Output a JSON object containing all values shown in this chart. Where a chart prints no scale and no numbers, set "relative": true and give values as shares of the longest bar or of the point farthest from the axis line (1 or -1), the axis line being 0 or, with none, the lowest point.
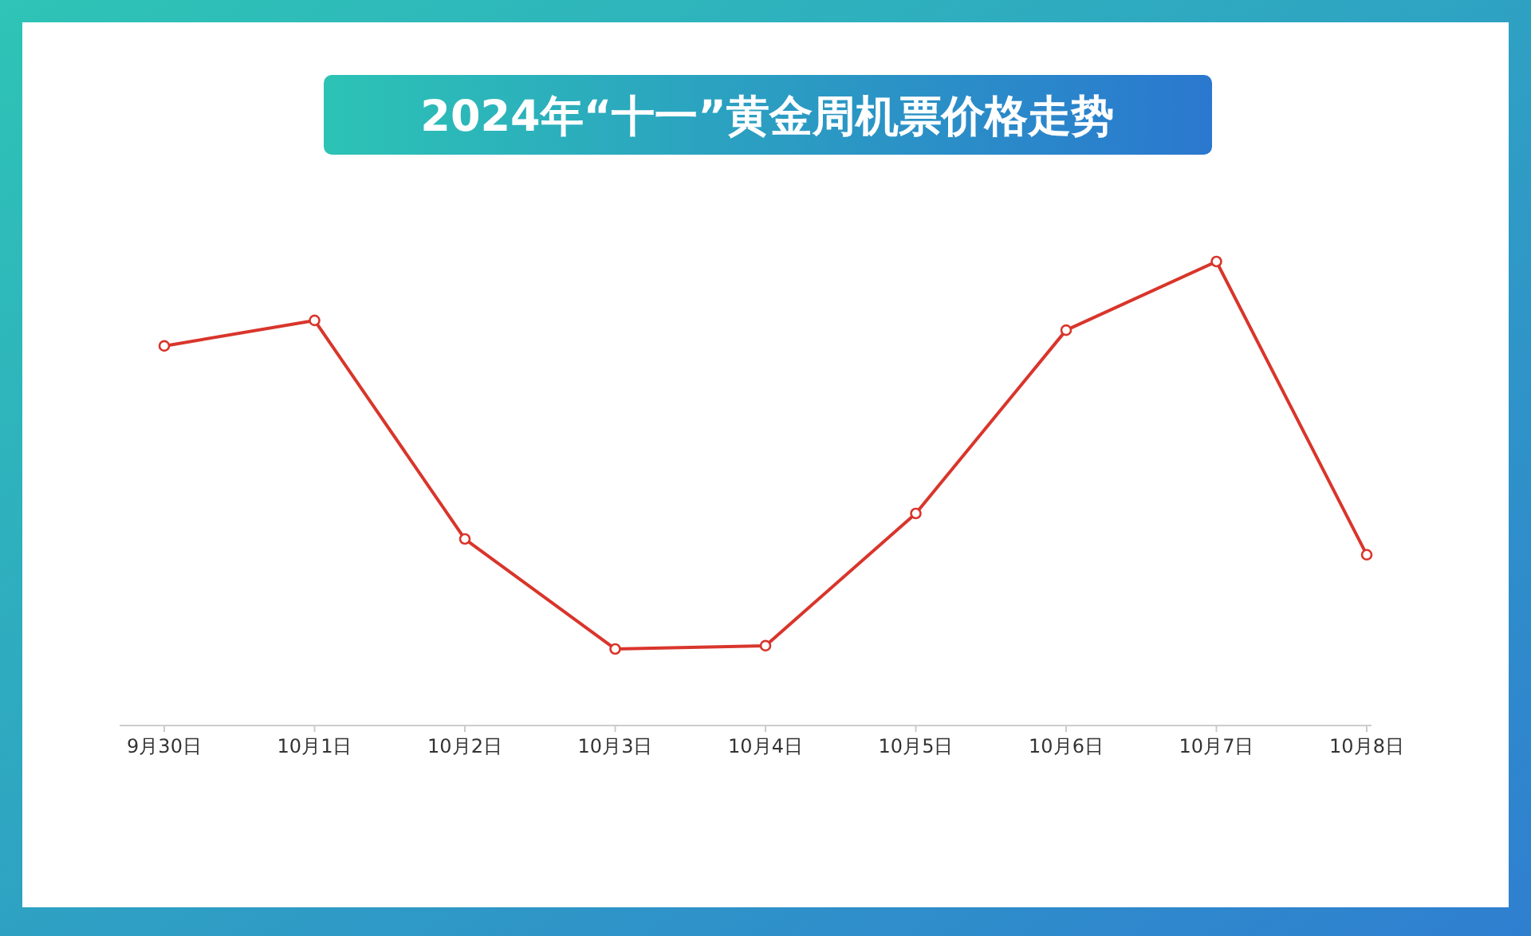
{
  "chart_data": {
    "type": "line",
    "title": "2024年“十一”黄金周机票价格走势",
    "relative": true,
    "marker": "circle",
    "categories": [
      "9月30日",
      "10月1日",
      "10月2日",
      "10月3日",
      "10月4日",
      "10月5日",
      "10月6日",
      "10月7日",
      "10月8日"
    ],
    "series": [
      {
        "color": "#d9352b",
        "values": [
          0.818,
          0.873,
          0.402,
          0.165,
          0.172,
          0.457,
          0.852,
          1,
          0.368
        ]
      }
    ]
  }
}
